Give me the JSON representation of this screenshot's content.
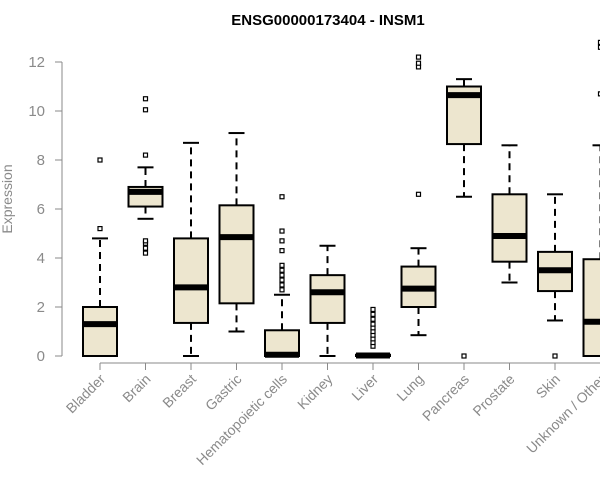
{
  "chart_data": {
    "type": "box",
    "title": "ENSG00000173404 - INSM1",
    "xlabel": "",
    "ylabel": "Expression",
    "ylim": [
      0,
      12
    ],
    "yticks": [
      0,
      2,
      4,
      6,
      8,
      10,
      12
    ],
    "box_fill": "#ede6cf",
    "categories": [
      "Bladder",
      "Brain",
      "Breast",
      "Gastric",
      "Hematopoietic cells",
      "Kidney",
      "Liver",
      "Lung",
      "Pancreas",
      "Prostate",
      "Skin",
      "Unknown / Other"
    ],
    "boxes": [
      {
        "min": 0,
        "q1": 0,
        "median": 1.3,
        "q3": 2.0,
        "max": 4.8,
        "outliers": [
          5.2,
          8.0
        ]
      },
      {
        "min": 5.6,
        "q1": 6.1,
        "median": 6.7,
        "q3": 6.9,
        "max": 7.7,
        "outliers": [
          4.2,
          4.4,
          4.6,
          4.7,
          8.2,
          10.05,
          10.5
        ]
      },
      {
        "min": 0,
        "q1": 1.35,
        "median": 2.8,
        "q3": 4.8,
        "max": 8.7,
        "outliers": []
      },
      {
        "min": 1.0,
        "q1": 2.15,
        "median": 4.85,
        "q3": 6.15,
        "max": 9.1,
        "outliers": []
      },
      {
        "min": 0,
        "q1": 0,
        "median": 0.05,
        "q3": 1.05,
        "max": 2.5,
        "outliers": [
          2.7,
          2.9,
          3.1,
          3.3,
          3.5,
          3.7,
          4.3,
          4.7,
          5.1,
          6.5
        ]
      },
      {
        "min": 0,
        "q1": 1.35,
        "median": 2.6,
        "q3": 3.3,
        "max": 4.5,
        "outliers": []
      },
      {
        "min": 0,
        "q1": 0,
        "median": 0.02,
        "q3": 0.05,
        "max": 0.1,
        "outliers": [
          0.4,
          0.55,
          0.7,
          0.85,
          1.0,
          1.15,
          1.3,
          1.5,
          1.7,
          1.9
        ]
      },
      {
        "min": 0.85,
        "q1": 2.0,
        "median": 2.75,
        "q3": 3.65,
        "max": 4.4,
        "outliers": [
          6.6,
          11.8,
          11.95,
          12.2
        ]
      },
      {
        "min": 6.5,
        "q1": 8.65,
        "median": 10.65,
        "q3": 11.0,
        "max": 11.3,
        "outliers": [
          0
        ]
      },
      {
        "min": 3.0,
        "q1": 3.85,
        "median": 4.9,
        "q3": 6.6,
        "max": 8.6,
        "outliers": []
      },
      {
        "min": 1.45,
        "q1": 2.65,
        "median": 3.5,
        "q3": 4.25,
        "max": 6.6,
        "outliers": [
          0
        ]
      },
      {
        "min": 0,
        "q1": 0,
        "median": 1.4,
        "q3": 3.95,
        "max": 8.6,
        "outliers": [
          10.7,
          12.6,
          12.8
        ]
      }
    ]
  }
}
